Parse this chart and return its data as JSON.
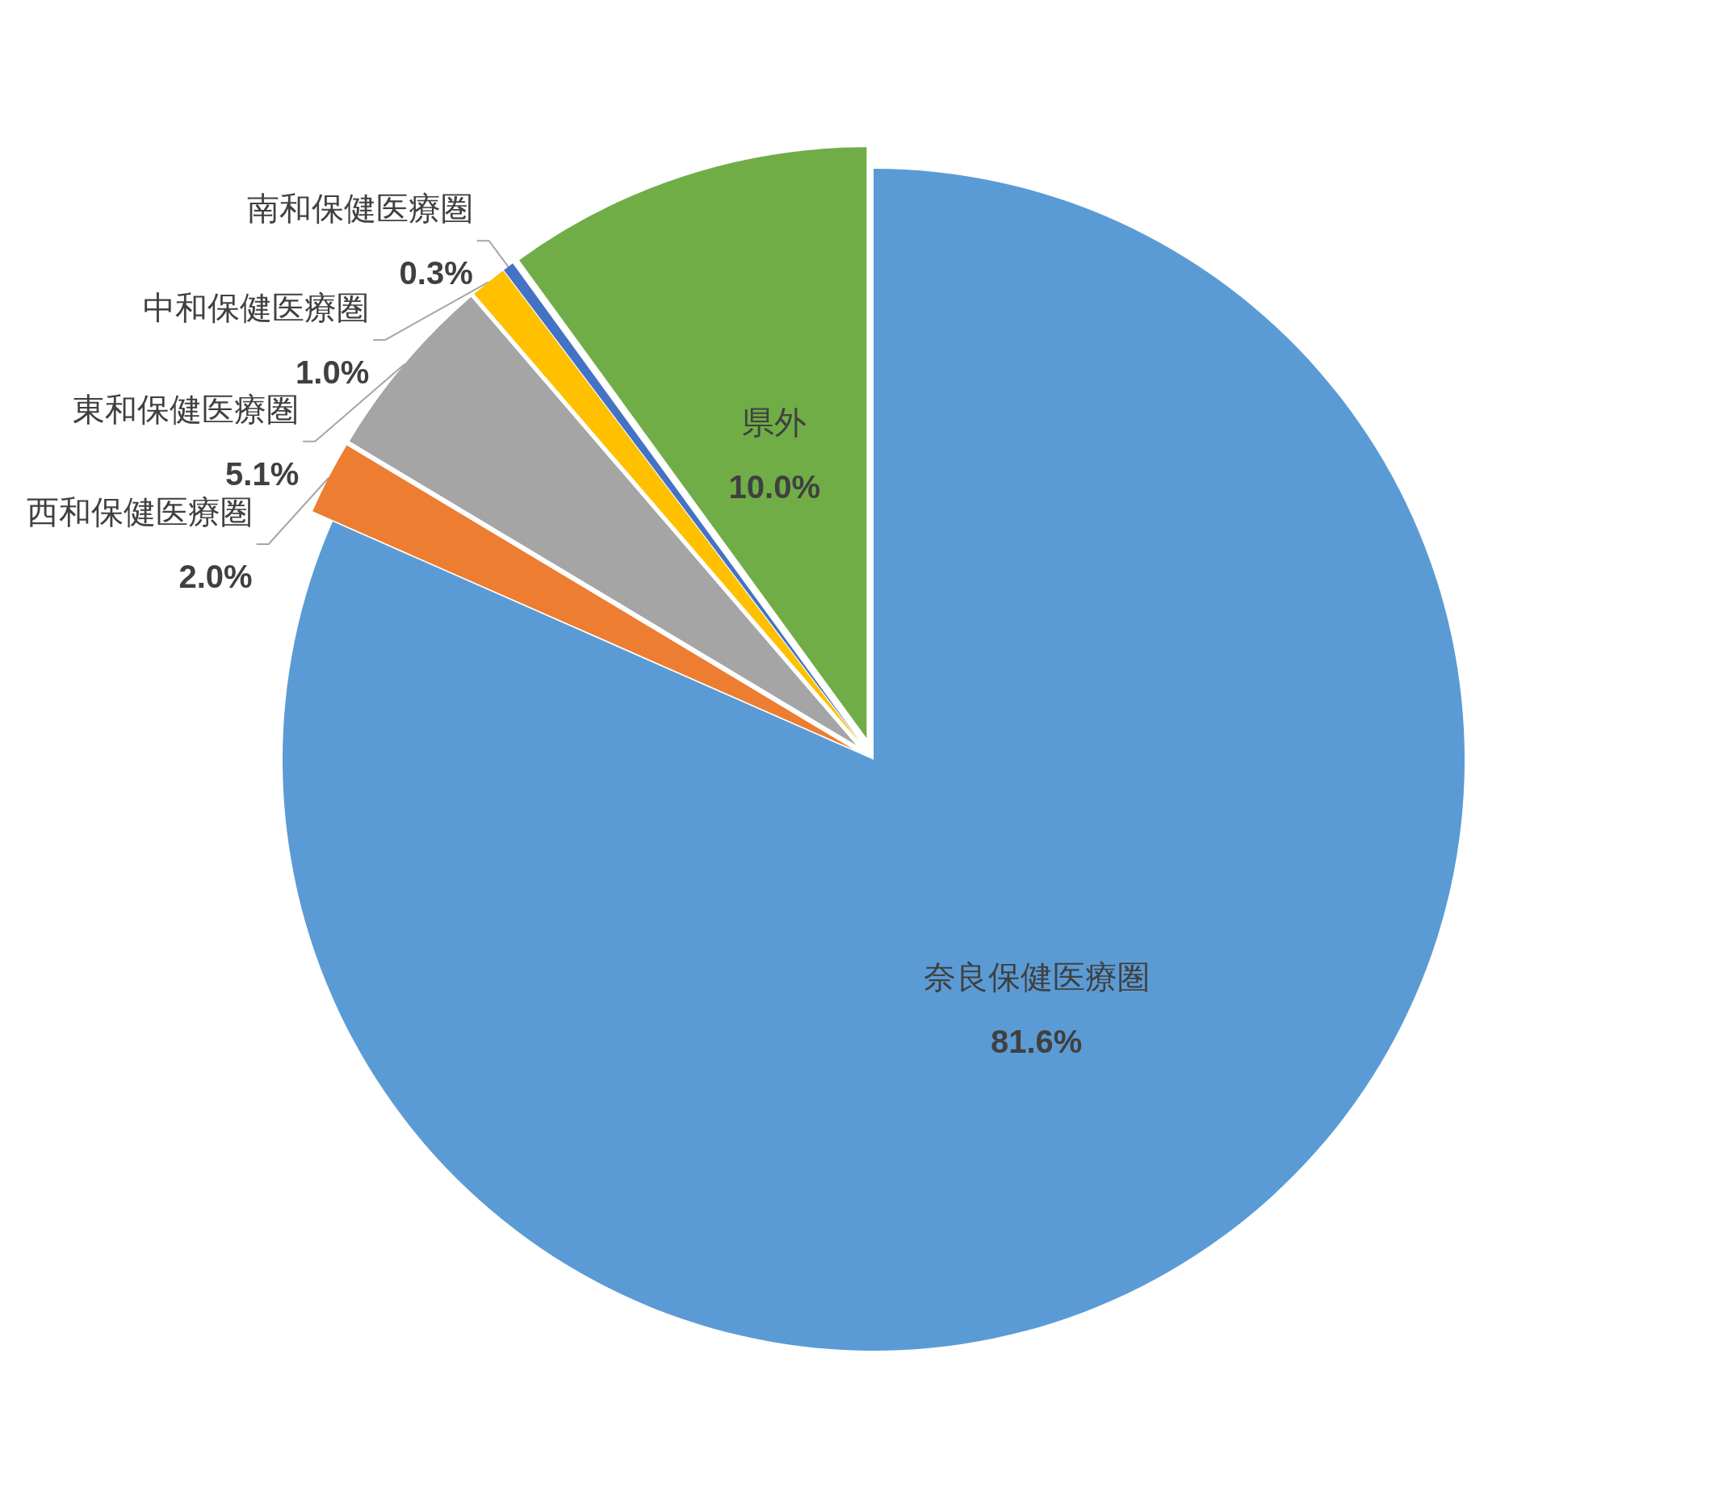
{
  "chart_data": {
    "type": "pie",
    "categories": [
      "奈良保健医療圏",
      "西和保健医療圏",
      "東和保健医療圏",
      "中和保健医療圏",
      "南和保健医療圏",
      "県外"
    ],
    "values": [
      81.6,
      2.0,
      5.1,
      1.0,
      0.3,
      10.0
    ],
    "value_labels": [
      "81.6%",
      "2.0%",
      "5.1%",
      "1.0%",
      "0.3%",
      "10.0%"
    ],
    "colors": [
      "#5b9bd5",
      "#ed7d31",
      "#a5a5a5",
      "#ffc000",
      "#4472c4",
      "#70ad47"
    ]
  }
}
